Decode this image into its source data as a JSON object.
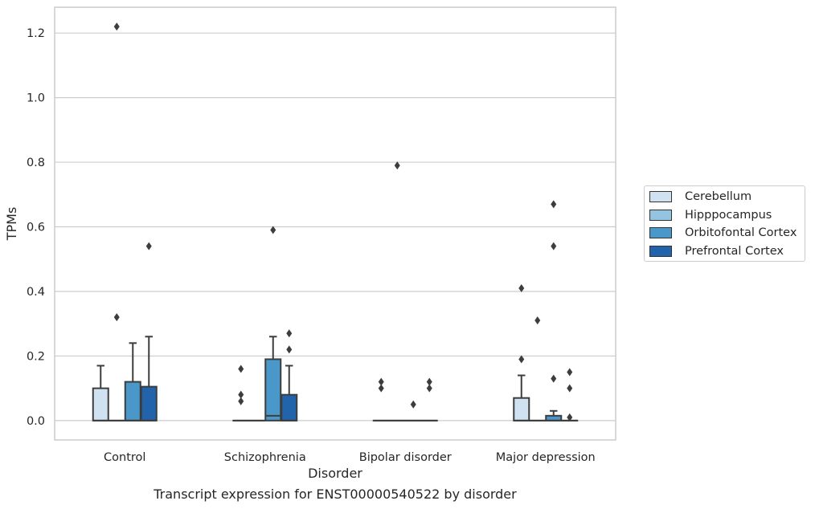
{
  "chart_data": {
    "type": "box",
    "caption": "Transcript expression for ENST00000540522 by disorder",
    "xlabel": "Disorder",
    "ylabel": "TPMs",
    "categories": [
      "Control",
      "Schizophrenia",
      "Bipolar disorder",
      "Major depression"
    ],
    "ylim": [
      -0.06,
      1.28
    ],
    "yticks": [
      0.0,
      0.2,
      0.4,
      0.6,
      0.8,
      1.0,
      1.2
    ],
    "ytick_labels": [
      "0.0",
      "0.2",
      "0.4",
      "0.6",
      "0.8",
      "1.0",
      "1.2"
    ],
    "grid": true,
    "legend_position": "right",
    "series": [
      {
        "name": "Cerebellum",
        "color": "#d0e1f2",
        "boxes": [
          {
            "min": 0,
            "q1": 0,
            "median": 0,
            "q3": 0.1,
            "max": 0.17,
            "outliers": []
          },
          {
            "min": 0,
            "q1": 0,
            "median": 0,
            "q3": 0,
            "max": 0,
            "outliers": [
              0.16,
              0.08,
              0.06
            ]
          },
          {
            "min": 0,
            "q1": 0,
            "median": 0,
            "q3": 0,
            "max": 0,
            "outliers": [
              0.12,
              0.1
            ]
          },
          {
            "min": 0,
            "q1": 0,
            "median": 0,
            "q3": 0.07,
            "max": 0.14,
            "outliers": [
              0.41,
              0.19
            ]
          }
        ]
      },
      {
        "name": "Hipppocampus",
        "color": "#94c4df",
        "boxes": [
          {
            "min": 0,
            "q1": 0,
            "median": 0,
            "q3": 0,
            "max": 0,
            "outliers": [
              1.22,
              0.32
            ]
          },
          {
            "min": 0,
            "q1": 0,
            "median": 0,
            "q3": 0,
            "max": 0,
            "outliers": []
          },
          {
            "min": 0,
            "q1": 0,
            "median": 0,
            "q3": 0,
            "max": 0,
            "outliers": [
              0.79
            ]
          },
          {
            "min": 0,
            "q1": 0,
            "median": 0,
            "q3": 0,
            "max": 0,
            "outliers": [
              0.31
            ]
          }
        ]
      },
      {
        "name": "Orbitofontal Cortex",
        "color": "#4a98c9",
        "boxes": [
          {
            "min": 0,
            "q1": 0,
            "median": 0,
            "q3": 0.12,
            "max": 0.24,
            "outliers": []
          },
          {
            "min": 0,
            "q1": 0,
            "median": 0.015,
            "q3": 0.19,
            "max": 0.26,
            "outliers": [
              0.59
            ]
          },
          {
            "min": 0,
            "q1": 0,
            "median": 0,
            "q3": 0,
            "max": 0,
            "outliers": [
              0.05
            ]
          },
          {
            "min": 0,
            "q1": 0,
            "median": 0,
            "q3": 0.015,
            "max": 0.03,
            "outliers": [
              0.67,
              0.54,
              0.13
            ]
          }
        ]
      },
      {
        "name": "Prefrontal Cortex",
        "color": "#2164ab",
        "boxes": [
          {
            "min": 0,
            "q1": 0,
            "median": 0,
            "q3": 0.105,
            "max": 0.26,
            "outliers": [
              0.54
            ]
          },
          {
            "min": 0,
            "q1": 0,
            "median": 0,
            "q3": 0.08,
            "max": 0.17,
            "outliers": [
              0.27,
              0.22
            ]
          },
          {
            "min": 0,
            "q1": 0,
            "median": 0,
            "q3": 0,
            "max": 0,
            "outliers": [
              0.12,
              0.1
            ]
          },
          {
            "min": 0,
            "q1": 0,
            "median": 0,
            "q3": 0,
            "max": 0,
            "outliers": [
              0.15,
              0.1,
              0.01
            ]
          }
        ]
      }
    ]
  }
}
